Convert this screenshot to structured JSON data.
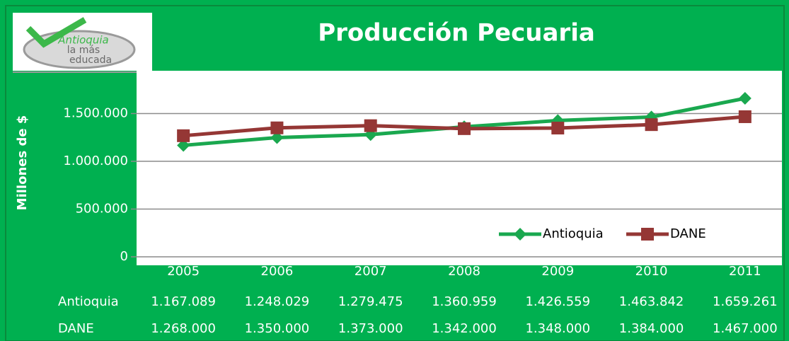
{
  "chart_data": {
    "type": "line",
    "title": "Producción Pecuaria",
    "logo": [
      "Antioquia",
      "la más",
      "educada"
    ],
    "ylabel": "Millones de $",
    "categories": [
      "2005",
      "2006",
      "2007",
      "2008",
      "2009",
      "2010",
      "2011"
    ],
    "series": [
      {
        "name": "Antioquia",
        "color": "#1aa84f",
        "marker": "diamond",
        "values": [
          1167089,
          1248029,
          1279475,
          1360959,
          1426559,
          1463842,
          1659261
        ],
        "value_labels": [
          "1.167.089",
          "1.248.029",
          "1.279.475",
          "1.360.959",
          "1.426.559",
          "1.463.842",
          "1.659.261"
        ]
      },
      {
        "name": "DANE",
        "color": "#953735",
        "marker": "square",
        "values": [
          1268000,
          1350000,
          1373000,
          1342000,
          1348000,
          1384000,
          1467000
        ],
        "value_labels": [
          "1.268.000",
          "1.350.000",
          "1.373.000",
          "1.342.000",
          "1.348.000",
          "1.384.000",
          "1.467.000"
        ]
      }
    ],
    "ylim": [
      0,
      2000000
    ],
    "yticks": [
      {
        "value": 0,
        "label": "0"
      },
      {
        "value": 500000,
        "label": "500.000"
      },
      {
        "value": 1000000,
        "label": "1.000.000"
      },
      {
        "value": 1500000,
        "label": "1.500.000"
      }
    ],
    "grid": true,
    "legend": "lower right"
  }
}
